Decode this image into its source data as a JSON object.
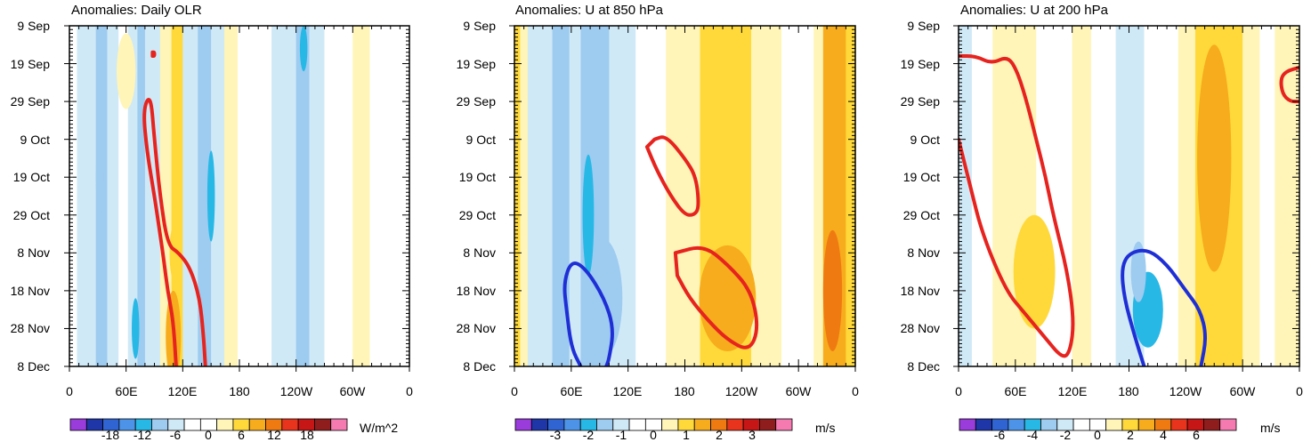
{
  "chart_data": [
    {
      "type": "heatmap",
      "title": "Anomalies: Daily OLR",
      "x_tick_labels": [
        "0",
        "60E",
        "120E",
        "180",
        "120W",
        "60W",
        "0"
      ],
      "y_tick_labels": [
        "9 Sep",
        "19 Sep",
        "29 Sep",
        "9 Oct",
        "19 Oct",
        "29 Oct",
        "8 Nov",
        "18 Nov",
        "28 Nov",
        "8 Dec"
      ],
      "xlim": [
        0,
        360
      ],
      "ylim_days": [
        0,
        90
      ],
      "colorbar_labels": [
        "-18",
        "-12",
        "-6",
        "0",
        "6",
        "12",
        "18"
      ],
      "units": "W/m^2",
      "colors": [
        "#9a3bdc",
        "#1e36a8",
        "#2f64d2",
        "#4d94e8",
        "#28b8e6",
        "#9ecbf0",
        "#cfe9f7",
        "#ffffff",
        "#ffffff",
        "#fff5b8",
        "#ffd93a",
        "#f7ac1d",
        "#f07a12",
        "#e8341c",
        "#c61616",
        "#8f1d1d",
        "#f47ab0"
      ],
      "bands": [
        {
          "x0": 0,
          "x1": 8,
          "level": 0
        },
        {
          "x0": 8,
          "x1": 18,
          "level": -1
        },
        {
          "x0": 18,
          "x1": 28,
          "level": -1
        },
        {
          "x0": 28,
          "x1": 40,
          "level": -2
        },
        {
          "x0": 40,
          "x1": 52,
          "level": -1
        },
        {
          "x0": 52,
          "x1": 62,
          "level": 0
        },
        {
          "x0": 62,
          "x1": 72,
          "level": -1
        },
        {
          "x0": 72,
          "x1": 80,
          "level": -2
        },
        {
          "x0": 80,
          "x1": 96,
          "level": -1
        },
        {
          "x0": 96,
          "x1": 108,
          "level": 1
        },
        {
          "x0": 108,
          "x1": 120,
          "level": 2
        },
        {
          "x0": 120,
          "x1": 136,
          "level": -1
        },
        {
          "x0": 136,
          "x1": 150,
          "level": -2
        },
        {
          "x0": 150,
          "x1": 164,
          "level": -1
        },
        {
          "x0": 164,
          "x1": 178,
          "level": 1
        },
        {
          "x0": 178,
          "x1": 214,
          "level": 0
        },
        {
          "x0": 214,
          "x1": 240,
          "level": -1
        },
        {
          "x0": 240,
          "x1": 254,
          "level": -2
        },
        {
          "x0": 254,
          "x1": 270,
          "level": -1
        },
        {
          "x0": 270,
          "x1": 300,
          "level": 0
        },
        {
          "x0": 300,
          "x1": 318,
          "level": 1
        },
        {
          "x0": 318,
          "x1": 360,
          "level": 0
        }
      ],
      "blobs": [
        {
          "lon": 110,
          "day": 82,
          "rlon": 8,
          "rday": 12,
          "level": 3
        },
        {
          "lon": 112,
          "day": 60,
          "rlon": 6,
          "rday": 8,
          "level": 2
        },
        {
          "lon": 150,
          "day": 45,
          "rlon": 4,
          "rday": 12,
          "level": -3
        },
        {
          "lon": 32,
          "day": 40,
          "rlon": 4,
          "rday": 12,
          "level": -2
        },
        {
          "lon": 70,
          "day": 80,
          "rlon": 4,
          "rday": 8,
          "level": -3
        },
        {
          "lon": 60,
          "day": 12,
          "rlon": 10,
          "rday": 10,
          "level": 1
        },
        {
          "lon": 248,
          "day": 6,
          "rlon": 4,
          "rday": 6,
          "level": -3
        }
      ],
      "contours": [
        {
          "color": "#e6231e",
          "closed": false,
          "points": [
            [
              113,
              90
            ],
            [
              110,
              78
            ],
            [
              104,
              70
            ],
            [
              100,
              62
            ],
            [
              96,
              55
            ],
            [
              90,
              45
            ],
            [
              82,
              33
            ],
            [
              78,
              22
            ],
            [
              86,
              18
            ],
            [
              90,
              30
            ],
            [
              96,
              45
            ],
            [
              104,
              58
            ],
            [
              116,
              60
            ],
            [
              128,
              64
            ],
            [
              138,
              72
            ],
            [
              142,
              82
            ],
            [
              144,
              90
            ]
          ]
        },
        {
          "color": "#e6231e",
          "closed": true,
          "points": [
            [
              88,
              7
            ],
            [
              90,
              7
            ],
            [
              90,
              8
            ],
            [
              88,
              8
            ]
          ]
        }
      ]
    },
    {
      "type": "heatmap",
      "title": "Anomalies: U at 850 hPa",
      "x_tick_labels": [
        "0",
        "60E",
        "120E",
        "180",
        "120W",
        "60W",
        "0"
      ],
      "y_tick_labels": [
        "9 Sep",
        "19 Sep",
        "29 Sep",
        "9 Oct",
        "19 Oct",
        "29 Oct",
        "8 Nov",
        "18 Nov",
        "28 Nov",
        "8 Dec"
      ],
      "xlim": [
        0,
        360
      ],
      "ylim_days": [
        0,
        90
      ],
      "colorbar_labels": [
        "-3",
        "-2",
        "-1",
        "0",
        "1",
        "2",
        "3"
      ],
      "units": "m/s",
      "colors": [
        "#9a3bdc",
        "#1e36a8",
        "#2f64d2",
        "#4d94e8",
        "#28b8e6",
        "#9ecbf0",
        "#cfe9f7",
        "#ffffff",
        "#ffffff",
        "#fff5b8",
        "#ffd93a",
        "#f7ac1d",
        "#f07a12",
        "#e8341c",
        "#c61616",
        "#8f1d1d",
        "#f47ab0"
      ],
      "bands": [
        {
          "x0": 0,
          "x1": 6,
          "level": 2
        },
        {
          "x0": 6,
          "x1": 14,
          "level": 1
        },
        {
          "x0": 14,
          "x1": 40,
          "level": -1
        },
        {
          "x0": 40,
          "x1": 58,
          "level": -2
        },
        {
          "x0": 58,
          "x1": 70,
          "level": -1
        },
        {
          "x0": 70,
          "x1": 84,
          "level": -2
        },
        {
          "x0": 84,
          "x1": 100,
          "level": -2
        },
        {
          "x0": 100,
          "x1": 128,
          "level": -1
        },
        {
          "x0": 128,
          "x1": 160,
          "level": 0
        },
        {
          "x0": 160,
          "x1": 196,
          "level": 1
        },
        {
          "x0": 196,
          "x1": 250,
          "level": 2
        },
        {
          "x0": 250,
          "x1": 282,
          "level": 1
        },
        {
          "x0": 282,
          "x1": 316,
          "level": 0
        },
        {
          "x0": 316,
          "x1": 326,
          "level": 1
        },
        {
          "x0": 326,
          "x1": 350,
          "level": 3
        },
        {
          "x0": 350,
          "x1": 360,
          "level": 2
        }
      ],
      "blobs": [
        {
          "lon": 92,
          "day": 72,
          "rlon": 22,
          "rday": 16,
          "level": -2
        },
        {
          "lon": 78,
          "day": 50,
          "rlon": 6,
          "rday": 16,
          "level": -3
        },
        {
          "lon": 225,
          "day": 72,
          "rlon": 30,
          "rday": 14,
          "level": 3
        },
        {
          "lon": 336,
          "day": 70,
          "rlon": 10,
          "rday": 16,
          "level": 4
        }
      ],
      "contours": [
        {
          "color": "#e6231e",
          "closed": true,
          "points": [
            [
              148,
              30
            ],
            [
              160,
              29
            ],
            [
              180,
              35
            ],
            [
              192,
              40
            ],
            [
              195,
              48
            ],
            [
              190,
              50
            ],
            [
              180,
              50
            ],
            [
              165,
              45
            ],
            [
              150,
              38
            ],
            [
              140,
              32
            ]
          ]
        },
        {
          "color": "#e6231e",
          "closed": true,
          "points": [
            [
              170,
              60
            ],
            [
              200,
              58
            ],
            [
              225,
              63
            ],
            [
              250,
              70
            ],
            [
              258,
              80
            ],
            [
              248,
              86
            ],
            [
              225,
              83
            ],
            [
              205,
              78
            ],
            [
              185,
              72
            ],
            [
              172,
              66
            ]
          ]
        },
        {
          "color": "#1f2fd6",
          "closed": false,
          "points": [
            [
              70,
              90
            ],
            [
              60,
              85
            ],
            [
              55,
              75
            ],
            [
              52,
              68
            ],
            [
              60,
              62
            ],
            [
              75,
              64
            ],
            [
              95,
              72
            ],
            [
              105,
              80
            ],
            [
              100,
              88
            ],
            [
              97,
              90
            ]
          ]
        }
      ]
    },
    {
      "type": "heatmap",
      "title": "Anomalies: U at 200 hPa",
      "x_tick_labels": [
        "0",
        "60E",
        "120E",
        "180",
        "120W",
        "60W",
        "0"
      ],
      "y_tick_labels": [
        "9 Sep",
        "19 Sep",
        "29 Sep",
        "9 Oct",
        "19 Oct",
        "29 Oct",
        "8 Nov",
        "18 Nov",
        "28 Nov",
        "8 Dec"
      ],
      "xlim": [
        0,
        360
      ],
      "ylim_days": [
        0,
        90
      ],
      "colorbar_labels": [
        "-6",
        "-4",
        "-2",
        "0",
        "2",
        "4",
        "6"
      ],
      "units": "m/s",
      "colors": [
        "#9a3bdc",
        "#1e36a8",
        "#2f64d2",
        "#4d94e8",
        "#28b8e6",
        "#9ecbf0",
        "#cfe9f7",
        "#ffffff",
        "#ffffff",
        "#fff5b8",
        "#ffd93a",
        "#f7ac1d",
        "#f07a12",
        "#e8341c",
        "#c61616",
        "#8f1d1d",
        "#f47ab0"
      ],
      "bands": [
        {
          "x0": 0,
          "x1": 14,
          "level": -1
        },
        {
          "x0": 14,
          "x1": 36,
          "level": 0
        },
        {
          "x0": 36,
          "x1": 82,
          "level": 1
        },
        {
          "x0": 82,
          "x1": 120,
          "level": 0
        },
        {
          "x0": 120,
          "x1": 140,
          "level": 1
        },
        {
          "x0": 140,
          "x1": 166,
          "level": 0
        },
        {
          "x0": 166,
          "x1": 196,
          "level": -1
        },
        {
          "x0": 196,
          "x1": 232,
          "level": 0
        },
        {
          "x0": 232,
          "x1": 250,
          "level": 1
        },
        {
          "x0": 250,
          "x1": 300,
          "level": 2
        },
        {
          "x0": 300,
          "x1": 318,
          "level": 1
        },
        {
          "x0": 318,
          "x1": 334,
          "level": 0
        },
        {
          "x0": 334,
          "x1": 360,
          "level": 1
        }
      ],
      "blobs": [
        {
          "lon": 270,
          "day": 35,
          "rlon": 18,
          "rday": 30,
          "level": 3
        },
        {
          "lon": 200,
          "day": 75,
          "rlon": 16,
          "rday": 10,
          "level": -3
        },
        {
          "lon": 190,
          "day": 65,
          "rlon": 8,
          "rday": 8,
          "level": -2
        },
        {
          "lon": 80,
          "day": 65,
          "rlon": 22,
          "rday": 15,
          "level": 2
        }
      ],
      "contours": [
        {
          "color": "#e6231e",
          "closed": false,
          "points": [
            [
              0,
              30
            ],
            [
              12,
              42
            ],
            [
              25,
              55
            ],
            [
              50,
              70
            ],
            [
              70,
              76
            ],
            [
              90,
              82
            ],
            [
              110,
              88
            ],
            [
              118,
              86
            ],
            [
              122,
              78
            ],
            [
              115,
              65
            ],
            [
              100,
              50
            ],
            [
              92,
              40
            ],
            [
              82,
              30
            ],
            [
              72,
              20
            ],
            [
              62,
              12
            ],
            [
              52,
              8
            ],
            [
              35,
              10
            ],
            [
              18,
              8
            ],
            [
              0,
              8
            ]
          ]
        },
        {
          "color": "#e6231e",
          "closed": false,
          "points": [
            [
              360,
              11
            ],
            [
              346,
              12
            ],
            [
              340,
              14
            ],
            [
              342,
              18
            ],
            [
              350,
              20
            ],
            [
              360,
              20
            ]
          ]
        },
        {
          "color": "#1f2fd6",
          "closed": false,
          "points": [
            [
              196,
              90
            ],
            [
              186,
              82
            ],
            [
              175,
              72
            ],
            [
              172,
              64
            ],
            [
              180,
              60
            ],
            [
              200,
              59
            ],
            [
              220,
              63
            ],
            [
              240,
              70
            ],
            [
              255,
              75
            ],
            [
              262,
              82
            ],
            [
              256,
              90
            ]
          ]
        }
      ]
    }
  ]
}
